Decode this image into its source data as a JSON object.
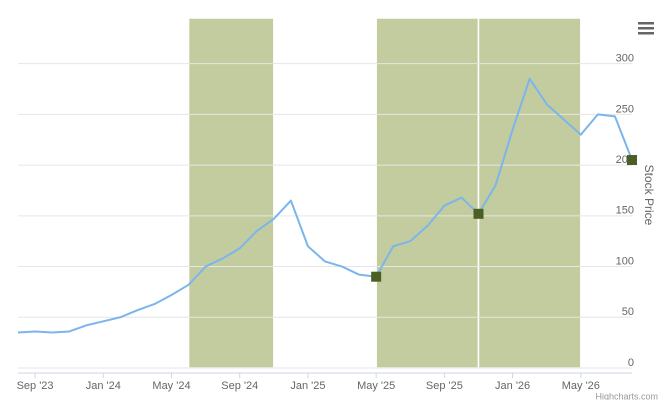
{
  "chart_data": {
    "type": "line",
    "y_axis_title": "Stock Price",
    "credits": "Highcharts.com",
    "x": [
      "2023-08",
      "2023-09",
      "2023-10",
      "2023-11",
      "2023-12",
      "2024-01",
      "2024-02",
      "2024-03",
      "2024-04",
      "2024-05",
      "2024-06",
      "2024-07",
      "2024-08",
      "2024-09",
      "2024-10",
      "2024-11",
      "2024-12",
      "2025-01",
      "2025-02",
      "2025-03",
      "2025-04",
      "2025-05",
      "2025-06",
      "2025-07",
      "2025-08",
      "2025-09",
      "2025-10",
      "2025-11",
      "2025-12",
      "2026-01",
      "2026-02",
      "2026-03",
      "2026-04",
      "2026-05",
      "2026-06",
      "2026-07",
      "2026-08"
    ],
    "series": [
      {
        "color": "#7cb5ec",
        "values": [
          35,
          36,
          35,
          36,
          42,
          46,
          50,
          57,
          63,
          72,
          82,
          100,
          108,
          118,
          135,
          147,
          165,
          120,
          105,
          100,
          92,
          90,
          120,
          125,
          140,
          160,
          168,
          152,
          180,
          235,
          285,
          260,
          245,
          230,
          250,
          248,
          205
        ]
      }
    ],
    "markers": {
      "color": "#4b5e23",
      "x": [
        "2025-05",
        "2025-11",
        "2026-08"
      ],
      "values": [
        90,
        152,
        205
      ]
    },
    "plot_bands": {
      "color": "#c2cc9e",
      "bands": [
        {
          "from": "2024-06",
          "to": "2024-11"
        },
        {
          "from": "2025-05",
          "to": "2025-11"
        },
        {
          "from": "2025-11",
          "to": "2026-05"
        }
      ]
    },
    "xlim": [
      "2023-08",
      "2026-08"
    ],
    "xticks": [
      {
        "value": "2023-09",
        "label": "Sep '23"
      },
      {
        "value": "2024-01",
        "label": "Jan '24"
      },
      {
        "value": "2024-05",
        "label": "May '24"
      },
      {
        "value": "2024-09",
        "label": "Sep '24"
      },
      {
        "value": "2025-01",
        "label": "Jan '25"
      },
      {
        "value": "2025-05",
        "label": "May '25"
      },
      {
        "value": "2025-09",
        "label": "Sep '25"
      },
      {
        "value": "2026-01",
        "label": "Jan '26"
      },
      {
        "value": "2026-05",
        "label": "May '26"
      }
    ],
    "ylim": [
      0,
      345
    ],
    "yticks": [
      0,
      50,
      100,
      150,
      200,
      250,
      300
    ],
    "grid": true
  }
}
